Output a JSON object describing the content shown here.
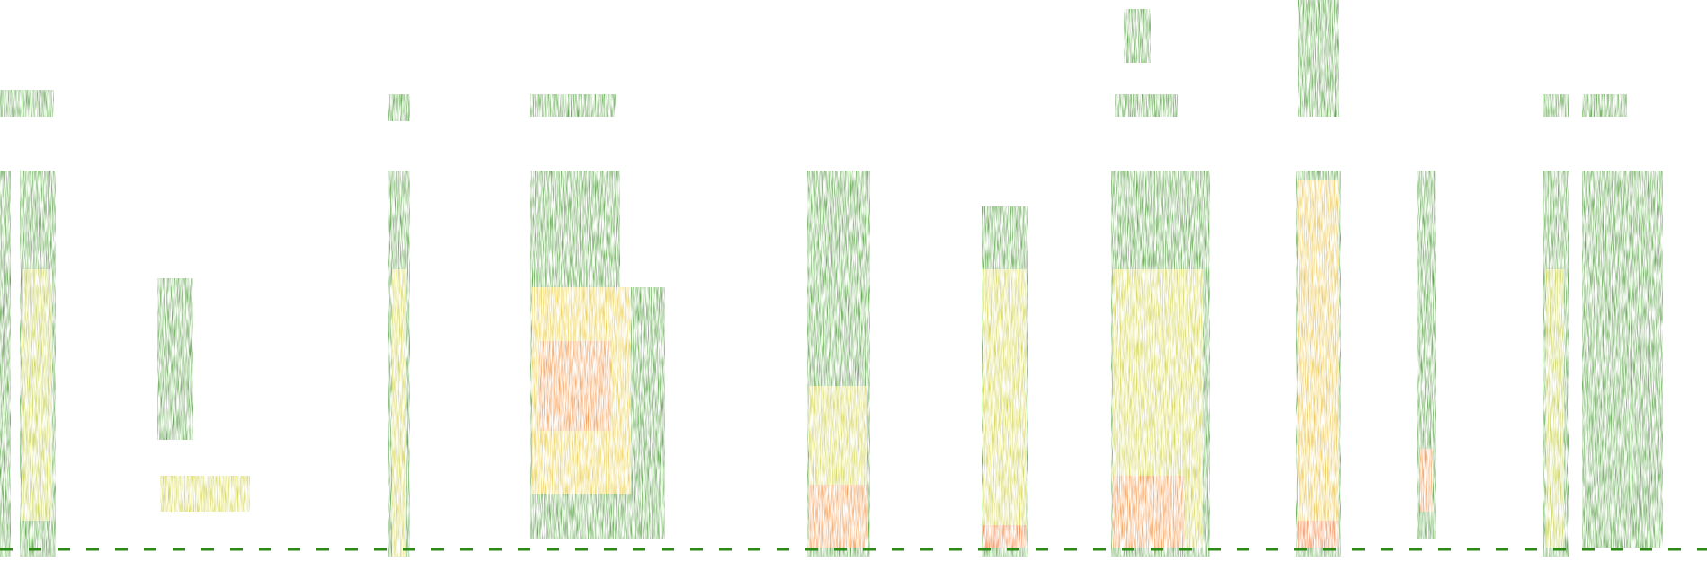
{
  "image": {
    "kind": "spectrogram",
    "background": "#ffffff",
    "palette": {
      "low": "#1f7a12",
      "mid_low": "#4c9a1c",
      "mid": "#c8c81a",
      "mid_high": "#f0b010",
      "high": "#ff5a10"
    }
  }
}
